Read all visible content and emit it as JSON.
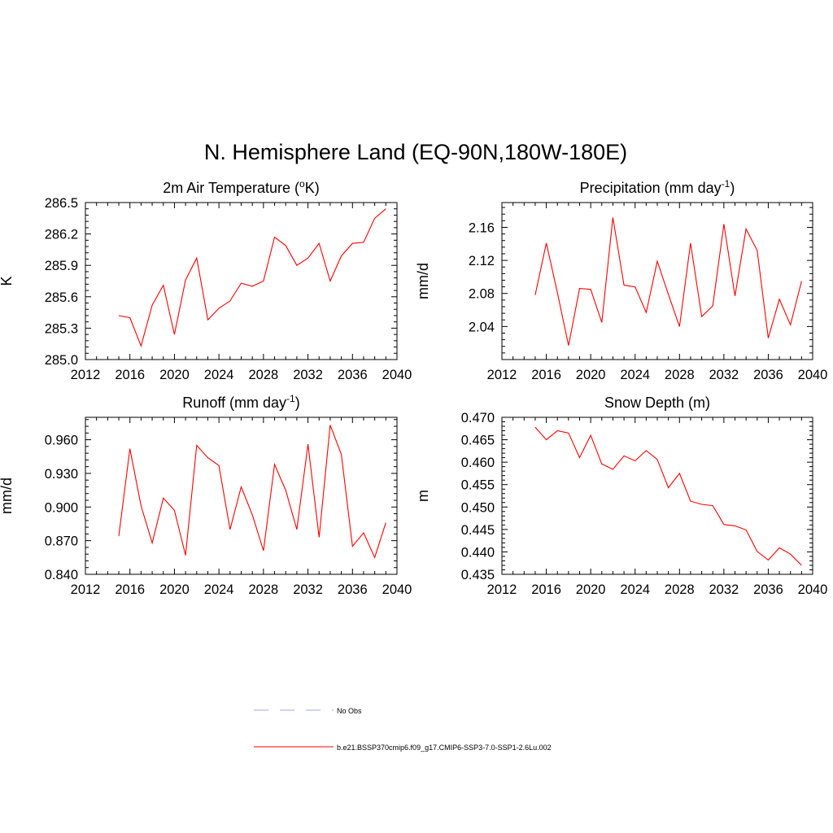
{
  "figure": {
    "title": "N. Hemisphere Land (EQ-90N,180W-180E)"
  },
  "legend": {
    "entries": [
      {
        "label": "No Obs",
        "color": "#b9b9e8",
        "style": "dashed"
      },
      {
        "label": "b.e21.BSSP370cmip6.f09_g17.CMIP6-SSP3-7.0-SSP1-2.6Lu.002",
        "color": "#ff0000",
        "style": "solid"
      }
    ]
  },
  "chart_data": [
    {
      "type": "line",
      "title": "2m Air Temperature (",
      "title_sup": "o",
      "title_after": "K)",
      "title_sup2": "",
      "title_end": "",
      "ylabel": "K",
      "xlim": [
        2012,
        2040
      ],
      "ylim": [
        285.0,
        286.5
      ],
      "xticks": [
        2012,
        2016,
        2020,
        2024,
        2028,
        2032,
        2036,
        2040
      ],
      "yticks": [
        "285.0",
        "285.3",
        "285.6",
        "285.9",
        "286.2",
        "286.5"
      ],
      "color": "#ff0000",
      "x": [
        2015,
        2016,
        2017,
        2018,
        2019,
        2020,
        2021,
        2022,
        2023,
        2024,
        2025,
        2026,
        2027,
        2028,
        2029,
        2030,
        2031,
        2032,
        2033,
        2034,
        2035,
        2036,
        2037,
        2038,
        2039
      ],
      "y": [
        285.42,
        285.4,
        285.13,
        285.52,
        285.71,
        285.24,
        285.76,
        285.97,
        285.38,
        285.49,
        285.56,
        285.73,
        285.7,
        285.75,
        286.17,
        286.09,
        285.9,
        285.97,
        286.11,
        285.75,
        285.99,
        286.11,
        286.12,
        286.35,
        286.44
      ]
    },
    {
      "type": "line",
      "title": "Precipitation (mm day",
      "title_sup": "-1",
      "title_after": ")",
      "title_sup2": "",
      "title_end": "",
      "ylabel": "mm/d",
      "xlim": [
        2012,
        2040
      ],
      "ylim": [
        2.0,
        2.19
      ],
      "xticks": [
        2012,
        2016,
        2020,
        2024,
        2028,
        2032,
        2036,
        2040
      ],
      "yticks": [
        "2.04",
        "2.08",
        "2.12",
        "2.16"
      ],
      "color": "#ff0000",
      "x": [
        2015,
        2016,
        2017,
        2018,
        2019,
        2020,
        2021,
        2022,
        2023,
        2024,
        2025,
        2026,
        2027,
        2028,
        2029,
        2030,
        2031,
        2032,
        2033,
        2034,
        2035,
        2036,
        2037,
        2038,
        2039
      ],
      "y": [
        2.078,
        2.141,
        2.081,
        2.017,
        2.086,
        2.085,
        2.045,
        2.172,
        2.09,
        2.088,
        2.057,
        2.119,
        2.079,
        2.04,
        2.141,
        2.052,
        2.065,
        2.164,
        2.077,
        2.158,
        2.132,
        2.026,
        2.073,
        2.042,
        2.095
      ]
    },
    {
      "type": "line",
      "title": "Runoff (mm day",
      "title_sup": "-1",
      "title_after": ")",
      "title_sup2": "",
      "title_end": "",
      "ylabel": "mm/d",
      "xlim": [
        2012,
        2040
      ],
      "ylim": [
        0.84,
        0.98
      ],
      "xticks": [
        2012,
        2016,
        2020,
        2024,
        2028,
        2032,
        2036,
        2040
      ],
      "yticks": [
        "0.840",
        "0.870",
        "0.900",
        "0.930",
        "0.960"
      ],
      "color": "#ff0000",
      "x": [
        2015,
        2016,
        2017,
        2018,
        2019,
        2020,
        2021,
        2022,
        2023,
        2024,
        2025,
        2026,
        2027,
        2028,
        2029,
        2030,
        2031,
        2032,
        2033,
        2034,
        2035,
        2036,
        2037,
        2038,
        2039
      ],
      "y": [
        0.874,
        0.952,
        0.901,
        0.868,
        0.908,
        0.897,
        0.857,
        0.955,
        0.944,
        0.937,
        0.88,
        0.918,
        0.893,
        0.861,
        0.938,
        0.915,
        0.88,
        0.956,
        0.873,
        0.973,
        0.947,
        0.865,
        0.877,
        0.855,
        0.886
      ]
    },
    {
      "type": "line",
      "title": "Snow Depth (m)",
      "title_sup": "",
      "title_after": "",
      "title_sup2": "",
      "title_end": "",
      "ylabel": "m",
      "xlim": [
        2012,
        2040
      ],
      "ylim": [
        0.435,
        0.47
      ],
      "xticks": [
        2012,
        2016,
        2020,
        2024,
        2028,
        2032,
        2036,
        2040
      ],
      "yticks": [
        "0.435",
        "0.440",
        "0.445",
        "0.450",
        "0.455",
        "0.460",
        "0.465",
        "0.470"
      ],
      "color": "#ff0000",
      "x": [
        2015,
        2016,
        2017,
        2018,
        2019,
        2020,
        2021,
        2022,
        2023,
        2024,
        2025,
        2026,
        2027,
        2028,
        2029,
        2030,
        2031,
        2032,
        2033,
        2034,
        2035,
        2036,
        2037,
        2038,
        2039
      ],
      "y": [
        0.4678,
        0.465,
        0.467,
        0.4665,
        0.461,
        0.466,
        0.4596,
        0.4584,
        0.4614,
        0.4603,
        0.4626,
        0.4606,
        0.4543,
        0.4575,
        0.4513,
        0.4506,
        0.4503,
        0.4461,
        0.4458,
        0.4449,
        0.4401,
        0.4382,
        0.4409,
        0.4395,
        0.437
      ]
    }
  ]
}
